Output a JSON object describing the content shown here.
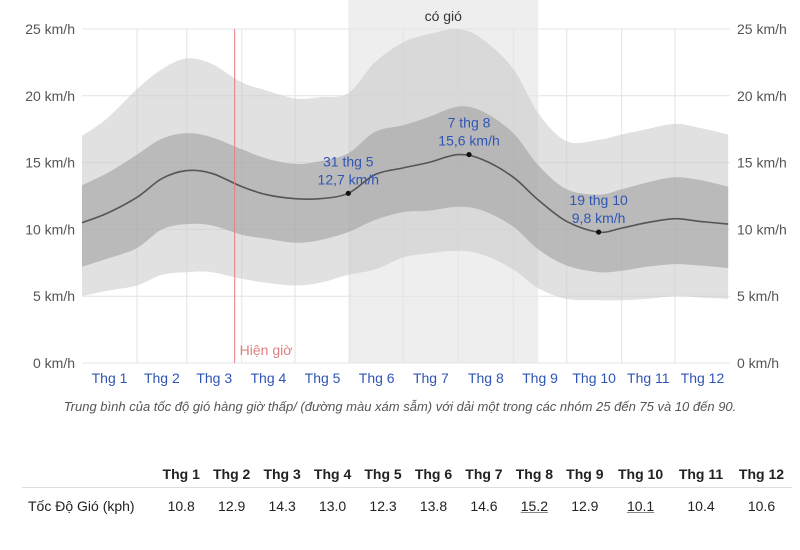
{
  "chart_data": {
    "type": "area",
    "season_label": "có gió",
    "season_range": [
      "Thg 5 31",
      "Thg 9 15"
    ],
    "now_label": "Hiện giờ",
    "now_date": "Thg 3 28",
    "y_ticks": [
      "0 km/h",
      "5 km/h",
      "10 km/h",
      "15 km/h",
      "20 km/h",
      "25 km/h"
    ],
    "y_tick_values": [
      0,
      5,
      10,
      15,
      20,
      25
    ],
    "ylim": [
      0,
      25
    ],
    "months": [
      "Thg 1",
      "Thg 2",
      "Thg 3",
      "Thg 4",
      "Thg 5",
      "Thg 6",
      "Thg 7",
      "Thg 8",
      "Thg 9",
      "Thg 10",
      "Thg 11",
      "Thg 12"
    ],
    "x": [
      "Jan 1",
      "Jan 15",
      "Feb 1",
      "Feb 15",
      "Mar 1",
      "Mar 15",
      "Apr 1",
      "Apr 15",
      "May 1",
      "May 15",
      "May 31",
      "Jun 15",
      "Jul 1",
      "Jul 15",
      "Aug 1",
      "Aug 15",
      "Sep 1",
      "Sep 15",
      "Oct 1",
      "Oct 19",
      "Nov 1",
      "Nov 15",
      "Dec 1",
      "Dec 15",
      "Dec 31"
    ],
    "x_day": [
      0,
      14,
      31,
      45,
      59,
      73,
      90,
      104,
      120,
      134,
      150,
      165,
      181,
      195,
      212,
      226,
      243,
      257,
      273,
      291,
      304,
      318,
      334,
      348,
      364
    ],
    "series": [
      {
        "values": [
          10.5,
          11.2,
          12.4,
          13.8,
          14.4,
          14.2,
          13.2,
          12.6,
          12.3,
          12.3,
          12.7,
          14.1,
          14.6,
          15.0,
          15.6,
          15.2,
          13.9,
          12.2,
          10.6,
          9.8,
          10.1,
          10.5,
          10.8,
          10.6,
          10.4
        ]
      },
      {
        "values": [
          13.3,
          14.2,
          15.6,
          16.8,
          17.2,
          16.9,
          16.0,
          15.3,
          14.9,
          15.1,
          15.7,
          17.3,
          17.8,
          18.4,
          19.2,
          18.8,
          17.2,
          14.8,
          13.0,
          12.6,
          13.0,
          13.5,
          13.9,
          13.7,
          13.2
        ]
      },
      {
        "values": [
          7.2,
          7.8,
          8.6,
          10.0,
          10.4,
          10.3,
          9.6,
          9.3,
          9.0,
          9.2,
          9.8,
          10.7,
          11.3,
          11.4,
          11.7,
          11.4,
          10.2,
          8.5,
          7.3,
          6.8,
          6.9,
          7.2,
          7.4,
          7.3,
          7.1
        ]
      },
      {
        "values": [
          17.0,
          18.3,
          20.5,
          22.0,
          22.8,
          22.4,
          21.0,
          20.4,
          19.8,
          19.9,
          20.2,
          22.5,
          24.0,
          24.6,
          25.0,
          24.2,
          22.0,
          18.7,
          16.6,
          16.7,
          17.1,
          17.5,
          17.9,
          17.6,
          17.1
        ]
      },
      {
        "values": [
          5.0,
          5.4,
          5.8,
          6.6,
          6.8,
          6.8,
          6.3,
          6.0,
          5.8,
          6.0,
          6.6,
          7.0,
          7.9,
          8.2,
          8.4,
          8.1,
          7.0,
          5.6,
          4.8,
          4.7,
          4.7,
          4.8,
          5.0,
          4.9,
          4.8
        ]
      }
    ],
    "annotations": [
      {
        "date": "31 thg 5",
        "value_text": "12,7 km/h",
        "day": 150,
        "value": 12.7
      },
      {
        "date": "7 thg 8",
        "value_text": "15,6 km/h",
        "day": 218,
        "value": 15.6
      },
      {
        "date": "19 thg 10",
        "value_text": "9,8 km/h",
        "day": 291,
        "value": 9.8
      }
    ],
    "grid": true
  },
  "caption": "Trung bình của tốc độ gió hàng giờ thấp/ (đường màu xám sẫm) với dải một trong các nhóm 25 đến 75 và 10 đến 90.",
  "table": {
    "headers": [
      "Thg 1",
      "Thg 2",
      "Thg 3",
      "Thg 4",
      "Thg 5",
      "Thg 6",
      "Thg 7",
      "Thg 8",
      "Thg 9",
      "Thg 10",
      "Thg 11",
      "Thg 12"
    ],
    "row_label": "Tốc Độ Gió (kph)",
    "values": [
      "10.8",
      "12.9",
      "14.3",
      "13.0",
      "12.3",
      "13.8",
      "14.6",
      "15.2",
      "12.9",
      "10.1",
      "10.4",
      "10.6"
    ],
    "underlined": [
      7,
      9
    ]
  },
  "colors": {
    "outer_band": "#dcdcdc",
    "inner_band": "#b4b4b4",
    "season_bg": "#eeeeee",
    "mean_line": "#555555",
    "now_line": "#e08080",
    "label_blue": "#2f55b4"
  }
}
